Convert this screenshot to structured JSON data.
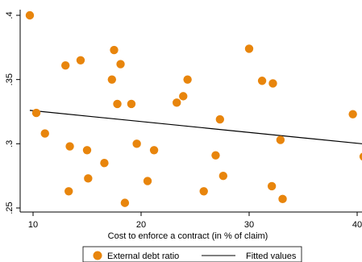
{
  "chart_data": {
    "type": "scatter",
    "xlabel": "Cost to enforce a contract (in % of claim)",
    "ylabel": "",
    "xlim": [
      10,
      40
    ],
    "ylim": [
      0.25,
      0.4
    ],
    "xticks": [
      10,
      20,
      30,
      40
    ],
    "xtick_labels": [
      "10",
      "20",
      "30",
      "40"
    ],
    "yticks": [
      0.25,
      0.3,
      0.35,
      0.4
    ],
    "ytick_labels": [
      ".25",
      ".3",
      ".35",
      ".4"
    ],
    "grid": false,
    "legend_position": "bottom",
    "series": [
      {
        "name": "External debt ratio",
        "kind": "scatter",
        "color": "#e8850c",
        "points": [
          [
            9.7,
            0.4
          ],
          [
            10.3,
            0.324
          ],
          [
            11.1,
            0.308
          ],
          [
            13.0,
            0.361
          ],
          [
            13.4,
            0.298
          ],
          [
            13.3,
            0.263
          ],
          [
            14.4,
            0.365
          ],
          [
            15.0,
            0.295
          ],
          [
            15.1,
            0.273
          ],
          [
            16.6,
            0.285
          ],
          [
            17.3,
            0.35
          ],
          [
            17.5,
            0.373
          ],
          [
            17.8,
            0.331
          ],
          [
            18.1,
            0.362
          ],
          [
            18.5,
            0.254
          ],
          [
            19.1,
            0.331
          ],
          [
            19.6,
            0.3
          ],
          [
            20.6,
            0.271
          ],
          [
            21.2,
            0.295
          ],
          [
            23.3,
            0.332
          ],
          [
            23.9,
            0.337
          ],
          [
            24.3,
            0.35
          ],
          [
            25.8,
            0.263
          ],
          [
            26.9,
            0.291
          ],
          [
            27.3,
            0.319
          ],
          [
            27.6,
            0.275
          ],
          [
            30.0,
            0.374
          ],
          [
            31.2,
            0.349
          ],
          [
            32.2,
            0.347
          ],
          [
            32.1,
            0.267
          ],
          [
            32.9,
            0.303
          ],
          [
            33.1,
            0.257
          ],
          [
            39.6,
            0.323
          ],
          [
            40.6,
            0.29
          ]
        ]
      },
      {
        "name": "Fitted values",
        "kind": "line",
        "color": "#000000",
        "points": [
          [
            9.7,
            0.326
          ],
          [
            40.6,
            0.3
          ]
        ]
      }
    ]
  }
}
